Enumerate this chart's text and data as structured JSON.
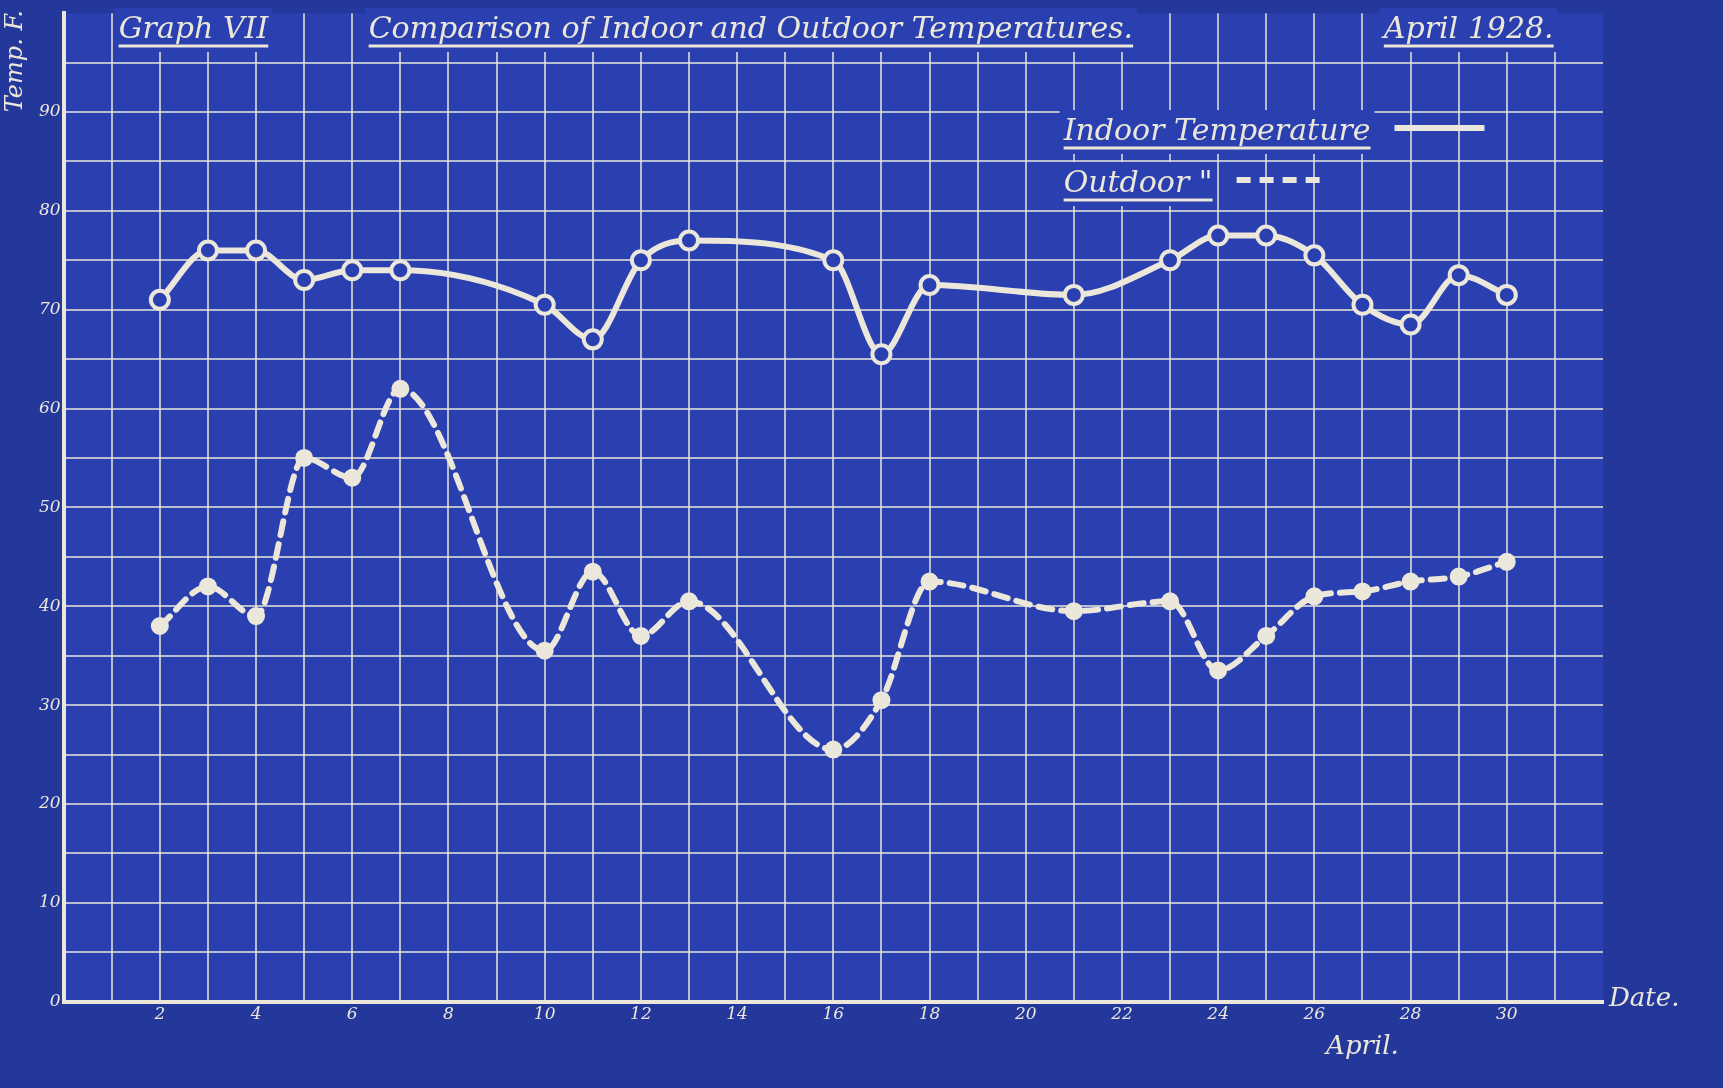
{
  "chart_data": {
    "type": "line",
    "title": "Comparison of Indoor and Outdoor Temperatures.",
    "subtitle": "April 1928.",
    "xlabel": "Date.",
    "ylabel": "Temp. F.",
    "annotations": [
      "Graph VII",
      "April."
    ],
    "x": [
      2,
      3,
      4,
      5,
      6,
      7,
      10,
      11,
      12,
      13,
      16,
      17,
      18,
      21,
      23,
      24,
      25,
      26,
      27,
      28,
      29,
      30
    ],
    "xlim": [
      0,
      32
    ],
    "xticks": [
      {
        "value": 1,
        "label": null
      },
      2,
      {
        "value": 3,
        "label": null
      },
      4,
      {
        "value": 5,
        "label": null
      },
      6,
      {
        "value": 7,
        "label": null
      },
      8,
      {
        "value": 9,
        "label": null
      },
      10,
      {
        "value": 11,
        "label": null
      },
      12,
      {
        "value": 13,
        "label": null
      },
      14,
      {
        "value": 15,
        "label": null
      },
      16,
      {
        "value": 17,
        "label": null
      },
      18,
      {
        "value": 19,
        "label": null
      },
      20,
      {
        "value": 21,
        "label": null
      },
      22,
      {
        "value": 23,
        "label": null
      },
      24,
      {
        "value": 25,
        "label": null
      },
      26,
      {
        "value": 27,
        "label": null
      },
      28,
      {
        "value": 29,
        "label": null
      },
      30,
      {
        "value": 31,
        "label": null
      }
    ],
    "ylim": [
      0,
      100
    ],
    "yticks": [
      0,
      {
        "value": 5,
        "label": null
      },
      10,
      {
        "value": 15,
        "label": null
      },
      20,
      {
        "value": 25,
        "label": null
      },
      30,
      {
        "value": 35,
        "label": null
      },
      40,
      {
        "value": 45,
        "label": null
      },
      50,
      {
        "value": 55,
        "label": null
      },
      60,
      {
        "value": 65,
        "label": null
      },
      70,
      {
        "value": 75,
        "label": null
      },
      80,
      {
        "value": 85,
        "label": null
      },
      90,
      {
        "value": 95,
        "label": null
      }
    ],
    "grid": true,
    "legend": "top right",
    "series": [
      {
        "name": "Indoor Temperature",
        "color": "#ebe7da",
        "line_style": "solid",
        "marker": "circle",
        "values": [
          71,
          76,
          76,
          73,
          74,
          74,
          70.5,
          67,
          75,
          77,
          75,
          65.5,
          72.5,
          71.5,
          75,
          77.5,
          77.5,
          75.5,
          70.5,
          68.5,
          73.5,
          71.5
        ]
      },
      {
        "name": "Outdoor \"",
        "color": "#ebe7da",
        "line_style": "dashed",
        "marker": "circle",
        "values": [
          38,
          42,
          39,
          55,
          53,
          62,
          35.5,
          43.5,
          37,
          40.5,
          25.5,
          30.5,
          42.5,
          39.5,
          40.5,
          33.5,
          37,
          41,
          41.5,
          42.5,
          43,
          44.5
        ]
      }
    ]
  }
}
